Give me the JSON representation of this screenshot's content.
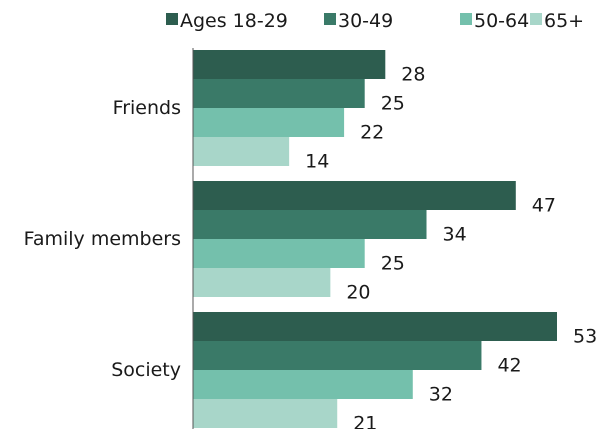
{
  "chart_data": {
    "type": "bar",
    "orientation": "horizontal",
    "categories": [
      "Friends",
      "Family members",
      "Society"
    ],
    "series": [
      {
        "name": "Ages 18-29",
        "color": "#2d5d4f",
        "values": [
          28,
          47,
          53
        ]
      },
      {
        "name": "30-49",
        "color": "#3a7a68",
        "values": [
          25,
          34,
          42
        ]
      },
      {
        "name": "50-64",
        "color": "#74c0ac",
        "values": [
          22,
          25,
          32
        ]
      },
      {
        "name": "65+",
        "color": "#a8d6c9",
        "values": [
          14,
          20,
          21
        ]
      }
    ],
    "value_labels": true,
    "legend_position": "top",
    "grid": false,
    "xlim": [
      0,
      60
    ]
  }
}
